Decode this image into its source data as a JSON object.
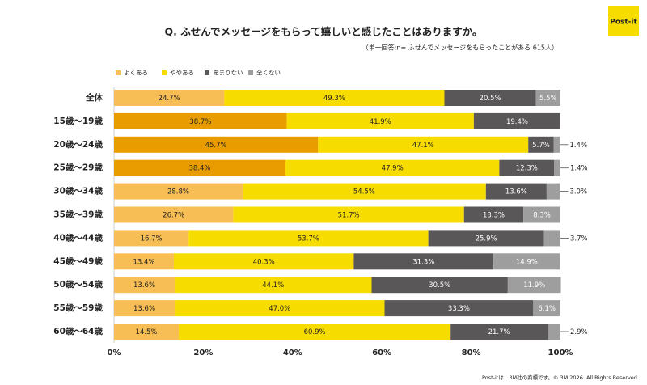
{
  "logo": "Post-it",
  "footer": "Post-itは、3M社の商標です。© 3M 2026. All Rights Reserved.",
  "chart_data": {
    "type": "stacked-bar-horizontal",
    "title": "Q.  ふせんでメッセージをもらって嬉しいと感じたことはありますか。",
    "subtitle": "（単一回答:n= ふせんでメッセージをもらったことがある 615人）",
    "categories": [
      "全体",
      "15歳～19歳",
      "20歳～24歳",
      "25歳～29歳",
      "30歳～34歳",
      "35歳～39歳",
      "40歳～44歳",
      "45歳～49歳",
      "50歳～54歳",
      "55歳～59歳",
      "60歳～64歳"
    ],
    "series": [
      {
        "name": "よくある",
        "color": "#f7be55",
        "colors": [
          "#f7be55",
          "#e89c00",
          "#e89c00",
          "#e89c00",
          "#f7be55",
          "#f7be55",
          "#f7be55",
          "#f7be55",
          "#f7be55",
          "#f7be55",
          "#f7be55"
        ],
        "values": [
          24.7,
          38.7,
          45.7,
          38.4,
          28.8,
          26.7,
          16.7,
          13.4,
          13.6,
          13.6,
          14.5
        ],
        "value_labels": [
          "24.7%",
          "38.7%",
          "45.7%",
          "38.4%",
          "28.8%",
          "26.7%",
          "16.7%",
          "13.4%",
          "13.6%",
          "13.6%",
          "14.5%"
        ]
      },
      {
        "name": "ややある",
        "color": "#f7dc00",
        "values": [
          49.3,
          41.9,
          47.1,
          47.9,
          54.5,
          51.7,
          53.7,
          40.3,
          44.1,
          47.0,
          60.9
        ],
        "value_labels": [
          "49.3%",
          "41.9%",
          "47.1%",
          "47.9%",
          "54.5%",
          "51.7%",
          "53.7%",
          "40.3%",
          "44.1%",
          "47.0%",
          "60.9%"
        ]
      },
      {
        "name": "あまりない",
        "color": "#595757",
        "values": [
          20.5,
          19.4,
          5.7,
          12.3,
          13.6,
          13.3,
          25.9,
          31.3,
          30.5,
          33.3,
          21.7
        ],
        "value_labels": [
          "20.5%",
          "19.4%",
          "5.7%",
          "12.3%",
          "13.6%",
          "13.3%",
          "25.9%",
          "31.3%",
          "30.5%",
          "33.3%",
          "21.7%"
        ]
      },
      {
        "name": "全くない",
        "color": "#9e9e9f",
        "values": [
          5.5,
          null,
          1.4,
          1.4,
          3.0,
          8.3,
          3.7,
          14.9,
          11.9,
          6.1,
          2.9
        ],
        "value_labels": [
          "5.5%",
          null,
          "1.4%",
          "1.4%",
          "3.0%",
          "8.3%",
          "3.7%",
          "14.9%",
          "11.9%",
          "6.1%",
          "2.9%"
        ]
      }
    ],
    "xlim": [
      0,
      100
    ],
    "xticks": [
      {
        "value": 0,
        "label": "0%"
      },
      {
        "value": 20,
        "label": "20%"
      },
      {
        "value": 40,
        "label": "40%"
      },
      {
        "value": 60,
        "label": "60%"
      },
      {
        "value": 80,
        "label": "80%"
      },
      {
        "value": 100,
        "label": "100%"
      }
    ],
    "legend": "top-left"
  }
}
